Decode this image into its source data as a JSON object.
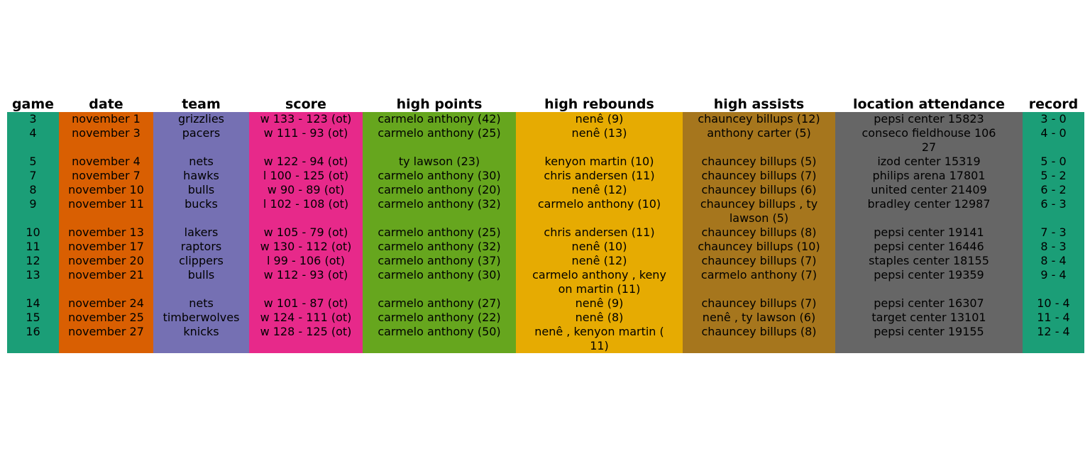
{
  "chart_data": {
    "type": "table",
    "columns": [
      {
        "key": "game",
        "label": "game",
        "color": "#1b9e77"
      },
      {
        "key": "date",
        "label": "date",
        "color": "#d95f02"
      },
      {
        "key": "team",
        "label": "team",
        "color": "#7570b3"
      },
      {
        "key": "score",
        "label": "score",
        "color": "#e7298a"
      },
      {
        "key": "high_points",
        "label": "high points",
        "color": "#66a61e"
      },
      {
        "key": "high_rebounds",
        "label": "high rebounds",
        "color": "#e6ab02"
      },
      {
        "key": "high_assists",
        "label": "high assists",
        "color": "#a6761d"
      },
      {
        "key": "location_attendance",
        "label": "location attendance",
        "color": "#666666"
      },
      {
        "key": "record",
        "label": "record",
        "color": "#1b9e77"
      }
    ],
    "rows": [
      [
        "3",
        "november 1",
        "grizzlies",
        "w 133 - 123 (ot)",
        "carmelo anthony (42)",
        "nenê (9)",
        "chauncey billups (12)",
        "pepsi center 15823",
        "3 - 0"
      ],
      [
        "4",
        "november 3",
        "pacers",
        "w 111 - 93 (ot)",
        "carmelo anthony (25)",
        "nenê (13)",
        "anthony carter (5)",
        "conseco fieldhouse 106\n27",
        "4 - 0"
      ],
      [
        "5",
        "november 4",
        "nets",
        "w 122 - 94 (ot)",
        "ty lawson (23)",
        "kenyon martin (10)",
        "chauncey billups (5)",
        "izod center 15319",
        "5 - 0"
      ],
      [
        "7",
        "november 7",
        "hawks",
        "l 100 - 125 (ot)",
        "carmelo anthony (30)",
        "chris andersen (11)",
        "chauncey billups (7)",
        "philips arena 17801",
        "5 - 2"
      ],
      [
        "8",
        "november 10",
        "bulls",
        "w 90 - 89 (ot)",
        "carmelo anthony (20)",
        "nenê (12)",
        "chauncey billups (6)",
        "united center 21409",
        "6 - 2"
      ],
      [
        "9",
        "november 11",
        "bucks",
        "l 102 - 108 (ot)",
        "carmelo anthony (32)",
        "carmelo anthony (10)",
        "chauncey billups , ty\nlawson (5)",
        "bradley center 12987",
        "6 - 3"
      ],
      [
        "10",
        "november 13",
        "lakers",
        "w 105 - 79 (ot)",
        "carmelo anthony (25)",
        "chris andersen (11)",
        "chauncey billups (8)",
        "pepsi center 19141",
        "7 - 3"
      ],
      [
        "11",
        "november 17",
        "raptors",
        "w 130 - 112 (ot)",
        "carmelo anthony (32)",
        "nenê (10)",
        "chauncey billups (10)",
        "pepsi center 16446",
        "8 - 3"
      ],
      [
        "12",
        "november 20",
        "clippers",
        "l 99 - 106 (ot)",
        "carmelo anthony (37)",
        "nenê (12)",
        "chauncey billups (7)",
        "staples center 18155",
        "8 - 4"
      ],
      [
        "13",
        "november 21",
        "bulls",
        "w 112 - 93 (ot)",
        "carmelo anthony (30)",
        "carmelo anthony , keny\non martin (11)",
        "carmelo anthony (7)",
        "pepsi center 19359",
        "9 - 4"
      ],
      [
        "14",
        "november 24",
        "nets",
        "w 101 - 87 (ot)",
        "carmelo anthony (27)",
        "nenê (9)",
        "chauncey billups (7)",
        "pepsi center 16307",
        "10 - 4"
      ],
      [
        "15",
        "november 25",
        "timberwolves",
        "w 124 - 111 (ot)",
        "carmelo anthony (22)",
        "nenê (8)",
        "nenê , ty lawson (6)",
        "target center 13101",
        "11 - 4"
      ],
      [
        "16",
        "november 27",
        "knicks",
        "w 128 - 125 (ot)",
        "carmelo anthony (50)",
        "nenê , kenyon martin (\n11)",
        "chauncey billups (8)",
        "pepsi center 19155",
        "12 - 4"
      ]
    ]
  }
}
